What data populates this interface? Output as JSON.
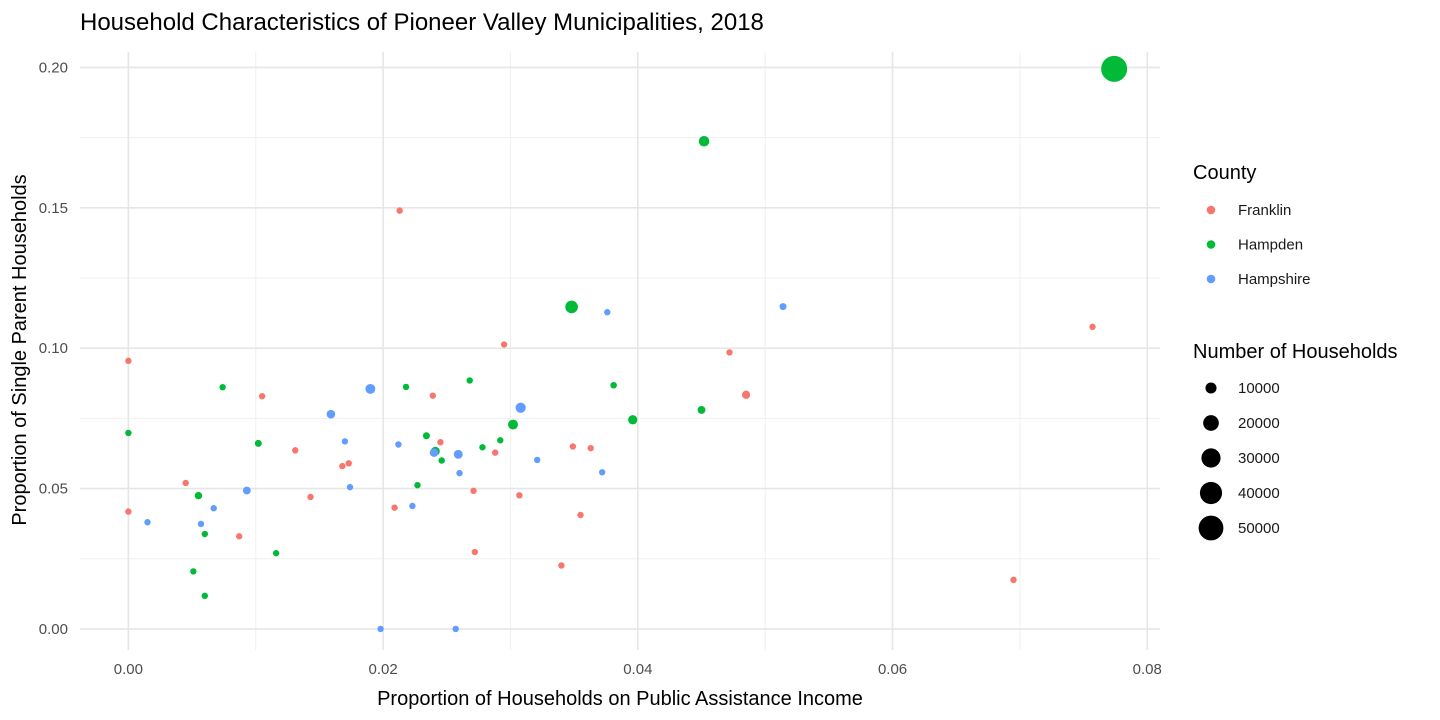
{
  "chart_data": {
    "type": "scatter",
    "title": "Household Characteristics of Pioneer Valley Municipalities, 2018",
    "xlabel": "Proportion of Households on Public Assistance Income",
    "ylabel": "Proportion of Single Parent Households",
    "xlim": [
      -0.0038,
      0.081
    ],
    "ylim": [
      -0.0075,
      0.2055
    ],
    "x_ticks": [
      0.0,
      0.02,
      0.04,
      0.06,
      0.08
    ],
    "x_tick_labels": [
      "0.00",
      "0.02",
      "0.04",
      "0.06",
      "0.08"
    ],
    "y_ticks": [
      0.0,
      0.05,
      0.1,
      0.15,
      0.2
    ],
    "y_tick_labels": [
      "0.00",
      "0.05",
      "0.10",
      "0.15",
      "0.20"
    ],
    "grid": true,
    "legend_position": "right",
    "color_legend": {
      "title": "County",
      "entries": [
        {
          "name": "Franklin",
          "color": "#F8766D"
        },
        {
          "name": "Hampden",
          "color": "#00BA38"
        },
        {
          "name": "Hampshire",
          "color": "#619CFF"
        }
      ]
    },
    "size_legend": {
      "title": "Number of Households",
      "values": [
        10000,
        20000,
        30000,
        40000,
        50000
      ],
      "labels": [
        "10000",
        "20000",
        "30000",
        "40000",
        "50000"
      ]
    },
    "series": [
      {
        "name": "Franklin",
        "color": "#F8766D",
        "points": [
          {
            "x": 0.0,
            "y": 0.0955,
            "households": 1500
          },
          {
            "x": 0.0,
            "y": 0.0418,
            "households": 1500
          },
          {
            "x": 0.0045,
            "y": 0.052,
            "households": 1500
          },
          {
            "x": 0.0087,
            "y": 0.033,
            "households": 2500
          },
          {
            "x": 0.0105,
            "y": 0.0829,
            "households": 1500
          },
          {
            "x": 0.0131,
            "y": 0.0636,
            "households": 1000
          },
          {
            "x": 0.0143,
            "y": 0.047,
            "households": 1500
          },
          {
            "x": 0.0168,
            "y": 0.058,
            "households": 1500
          },
          {
            "x": 0.0173,
            "y": 0.059,
            "households": 1000
          },
          {
            "x": 0.0209,
            "y": 0.0432,
            "households": 1000
          },
          {
            "x": 0.0213,
            "y": 0.149,
            "households": 500
          },
          {
            "x": 0.0239,
            "y": 0.0831,
            "households": 1500
          },
          {
            "x": 0.0245,
            "y": 0.0665,
            "households": 1500
          },
          {
            "x": 0.0271,
            "y": 0.0492,
            "households": 3000
          },
          {
            "x": 0.0272,
            "y": 0.0274,
            "households": 500
          },
          {
            "x": 0.0288,
            "y": 0.0628,
            "households": 2500
          },
          {
            "x": 0.0295,
            "y": 0.1013,
            "households": 3000
          },
          {
            "x": 0.0307,
            "y": 0.0476,
            "households": 1500
          },
          {
            "x": 0.034,
            "y": 0.0226,
            "households": 500
          },
          {
            "x": 0.0349,
            "y": 0.065,
            "households": 1500
          },
          {
            "x": 0.0355,
            "y": 0.0406,
            "households": 1000
          },
          {
            "x": 0.0363,
            "y": 0.0644,
            "households": 1500
          },
          {
            "x": 0.0472,
            "y": 0.0985,
            "households": 1000
          },
          {
            "x": 0.0485,
            "y": 0.0834,
            "households": 5500
          },
          {
            "x": 0.0695,
            "y": 0.0175,
            "households": 1000
          },
          {
            "x": 0.0757,
            "y": 0.1076,
            "households": 500
          }
        ]
      },
      {
        "name": "Hampden",
        "color": "#00BA38",
        "points": [
          {
            "x": 0.0,
            "y": 0.0698,
            "households": 1000
          },
          {
            "x": 0.0051,
            "y": 0.0205,
            "households": 1000
          },
          {
            "x": 0.0055,
            "y": 0.0475,
            "households": 4500
          },
          {
            "x": 0.006,
            "y": 0.0338,
            "households": 1000
          },
          {
            "x": 0.006,
            "y": 0.0118,
            "households": 1000
          },
          {
            "x": 0.0074,
            "y": 0.0861,
            "households": 1500
          },
          {
            "x": 0.0102,
            "y": 0.0661,
            "households": 4000
          },
          {
            "x": 0.0116,
            "y": 0.027,
            "households": 500
          },
          {
            "x": 0.0218,
            "y": 0.0862,
            "households": 1500
          },
          {
            "x": 0.0227,
            "y": 0.0512,
            "households": 3000
          },
          {
            "x": 0.0234,
            "y": 0.0688,
            "households": 4000
          },
          {
            "x": 0.0241,
            "y": 0.0633,
            "households": 6500
          },
          {
            "x": 0.0246,
            "y": 0.06,
            "households": 3500
          },
          {
            "x": 0.0268,
            "y": 0.0885,
            "households": 1000
          },
          {
            "x": 0.0278,
            "y": 0.0647,
            "households": 2000
          },
          {
            "x": 0.0292,
            "y": 0.0672,
            "households": 1000
          },
          {
            "x": 0.0302,
            "y": 0.0728,
            "households": 8000
          },
          {
            "x": 0.0348,
            "y": 0.1147,
            "households": 13000
          },
          {
            "x": 0.0381,
            "y": 0.0868,
            "households": 3500
          },
          {
            "x": 0.0396,
            "y": 0.0745,
            "households": 7000
          },
          {
            "x": 0.045,
            "y": 0.078,
            "households": 5000
          },
          {
            "x": 0.0452,
            "y": 0.1737,
            "households": 9000
          },
          {
            "x": 0.0774,
            "y": 0.1995,
            "households": 55000
          }
        ]
      },
      {
        "name": "Hampshire",
        "color": "#619CFF",
        "points": [
          {
            "x": 0.0015,
            "y": 0.038,
            "households": 1000
          },
          {
            "x": 0.0057,
            "y": 0.0374,
            "households": 1000
          },
          {
            "x": 0.0067,
            "y": 0.043,
            "households": 2500
          },
          {
            "x": 0.0093,
            "y": 0.0493,
            "households": 5000
          },
          {
            "x": 0.0159,
            "y": 0.0765,
            "households": 6000
          },
          {
            "x": 0.017,
            "y": 0.0668,
            "households": 2500
          },
          {
            "x": 0.0174,
            "y": 0.0505,
            "households": 2000
          },
          {
            "x": 0.019,
            "y": 0.0855,
            "households": 8000
          },
          {
            "x": 0.0198,
            "y": 0.0,
            "households": 500
          },
          {
            "x": 0.0212,
            "y": 0.0657,
            "households": 1000
          },
          {
            "x": 0.0223,
            "y": 0.0438,
            "households": 1500
          },
          {
            "x": 0.024,
            "y": 0.0628,
            "households": 6000
          },
          {
            "x": 0.0259,
            "y": 0.0622,
            "households": 6500
          },
          {
            "x": 0.0257,
            "y": 0.0,
            "households": 500
          },
          {
            "x": 0.026,
            "y": 0.0555,
            "households": 1000
          },
          {
            "x": 0.0308,
            "y": 0.0788,
            "households": 8500
          },
          {
            "x": 0.0321,
            "y": 0.0602,
            "households": 3000
          },
          {
            "x": 0.0372,
            "y": 0.0558,
            "households": 1000
          },
          {
            "x": 0.0376,
            "y": 0.1128,
            "households": 1000
          },
          {
            "x": 0.0514,
            "y": 0.1148,
            "households": 4000
          }
        ]
      }
    ]
  }
}
